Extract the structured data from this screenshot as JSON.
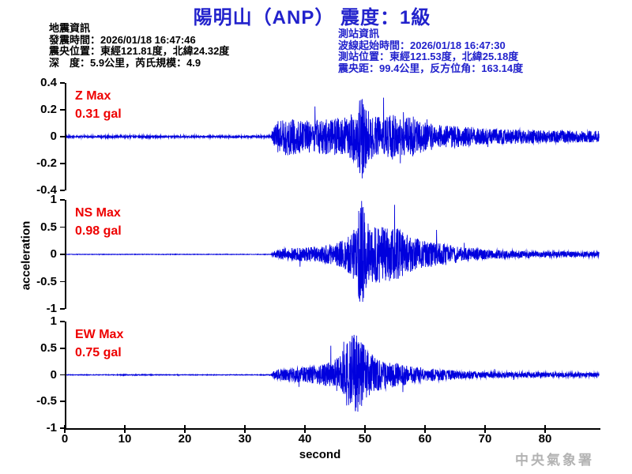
{
  "title": "陽明山（ANP） 震度：1級",
  "quake_info": {
    "heading": "地震資訊",
    "lines": [
      "發震時間：2026/01/18 16:47:46",
      "震央位置：東經121.81度，北緯24.32度",
      "深　度：5.9公里，芮氏規模：4.9"
    ]
  },
  "station_info": {
    "heading": "測站資訊",
    "lines": [
      "波線起始時間：2026/01/18 16:47:30",
      "測站位置：東經121.53度，北緯25.18度",
      "震央距：99.4公里，反方位角：163.14度"
    ]
  },
  "watermark": "中央氣象署",
  "colors": {
    "title_blue": "#2222cc",
    "station_info_blue": "#2222cc",
    "trace_blue": "#0000dd",
    "annotation_red": "#ee0000",
    "watermark_gray": "#b3b3b3",
    "axis_black": "#000000"
  },
  "chart_data": {
    "type": "line",
    "xlabel": "second",
    "ylabel": "acceleration",
    "xlim": [
      0,
      89
    ],
    "x_ticks": [
      0,
      10,
      20,
      30,
      40,
      50,
      60,
      70,
      80
    ],
    "x_tick_labels": [
      "0",
      "10",
      "20",
      "30",
      "40",
      "50",
      "60",
      "70",
      "80"
    ],
    "event_onset_s": 34.5,
    "peak_time_s": 49.5,
    "grid": false,
    "series": [
      {
        "id": "Z",
        "label": "Z Max",
        "max_label": "0.31 gal",
        "max_gal": 0.31,
        "ylim": [
          -0.4,
          0.4
        ],
        "yticks": [
          0.4,
          0.2,
          0,
          -0.2,
          -0.4
        ],
        "ytick_labels": [
          "0.4",
          "0.2",
          "0",
          "-0.2",
          "-0.4"
        ],
        "envelope": [
          [
            0,
            0.006
          ],
          [
            10,
            0.007
          ],
          [
            20,
            0.006
          ],
          [
            30,
            0.006
          ],
          [
            34.3,
            0.007
          ],
          [
            34.8,
            0.06
          ],
          [
            35.5,
            0.11
          ],
          [
            37,
            0.13
          ],
          [
            40,
            0.11
          ],
          [
            43,
            0.12
          ],
          [
            45,
            0.13
          ],
          [
            47,
            0.14
          ],
          [
            48.5,
            0.18
          ],
          [
            49.5,
            0.3
          ],
          [
            50.3,
            0.2
          ],
          [
            51.5,
            0.14
          ],
          [
            53,
            0.13
          ],
          [
            54.5,
            0.16
          ],
          [
            56,
            0.13
          ],
          [
            58,
            0.14
          ],
          [
            60,
            0.1
          ],
          [
            63,
            0.08
          ],
          [
            66,
            0.07
          ],
          [
            70,
            0.055
          ],
          [
            75,
            0.05
          ],
          [
            80,
            0.045
          ],
          [
            85,
            0.04
          ],
          [
            89,
            0.04
          ]
        ]
      },
      {
        "id": "NS",
        "label": "NS Max",
        "max_label": "0.98 gal",
        "max_gal": 0.98,
        "ylim": [
          -1,
          1
        ],
        "yticks": [
          1,
          0.5,
          0,
          -0.5,
          -1
        ],
        "ytick_labels": [
          "1",
          "0.5",
          "0",
          "-0.5",
          "-1"
        ],
        "envelope": [
          [
            0,
            0.004
          ],
          [
            30,
            0.004
          ],
          [
            34.3,
            0.005
          ],
          [
            34.8,
            0.05
          ],
          [
            36,
            0.09
          ],
          [
            38,
            0.1
          ],
          [
            40,
            0.11
          ],
          [
            43,
            0.13
          ],
          [
            45,
            0.17
          ],
          [
            47,
            0.28
          ],
          [
            48.5,
            0.45
          ],
          [
            49.4,
            0.95
          ],
          [
            50.2,
            0.55
          ],
          [
            51,
            0.45
          ],
          [
            52,
            0.5
          ],
          [
            53.5,
            0.42
          ],
          [
            55,
            0.45
          ],
          [
            56.5,
            0.34
          ],
          [
            58,
            0.28
          ],
          [
            60,
            0.22
          ],
          [
            63,
            0.18
          ],
          [
            66,
            0.12
          ],
          [
            70,
            0.08
          ],
          [
            75,
            0.06
          ],
          [
            80,
            0.05
          ],
          [
            89,
            0.04
          ]
        ]
      },
      {
        "id": "EW",
        "label": "EW Max",
        "max_label": "0.75 gal",
        "max_gal": 0.75,
        "ylim": [
          -1,
          1
        ],
        "yticks": [
          1,
          0.5,
          0,
          -0.5,
          -1
        ],
        "ytick_labels": [
          "1",
          "0.5",
          "0",
          "-0.5",
          "-1"
        ],
        "envelope": [
          [
            0,
            0.005
          ],
          [
            8,
            0.006
          ],
          [
            12,
            0.008
          ],
          [
            16,
            0.006
          ],
          [
            30,
            0.005
          ],
          [
            34.3,
            0.006
          ],
          [
            34.8,
            0.06
          ],
          [
            36,
            0.1
          ],
          [
            38,
            0.12
          ],
          [
            40,
            0.13
          ],
          [
            42,
            0.15
          ],
          [
            44,
            0.22
          ],
          [
            45.5,
            0.3
          ],
          [
            47,
            0.55
          ],
          [
            48.3,
            0.72
          ],
          [
            49.5,
            0.55
          ],
          [
            50.5,
            0.4
          ],
          [
            52,
            0.28
          ],
          [
            54,
            0.22
          ],
          [
            56,
            0.18
          ],
          [
            58,
            0.14
          ],
          [
            60,
            0.12
          ],
          [
            63,
            0.09
          ],
          [
            66,
            0.07
          ],
          [
            70,
            0.055
          ],
          [
            75,
            0.045
          ],
          [
            80,
            0.04
          ],
          [
            85,
            0.035
          ],
          [
            89,
            0.03
          ]
        ]
      }
    ]
  }
}
